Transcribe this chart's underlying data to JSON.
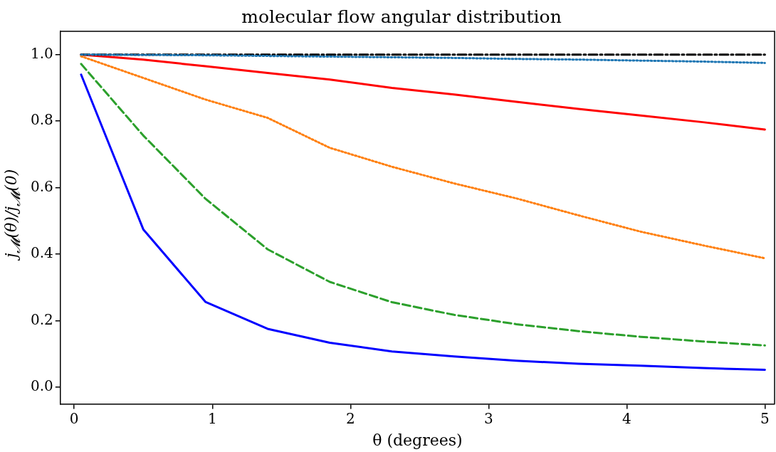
{
  "chart_data": {
    "type": "line",
    "title": "molecular flow angular distribution",
    "xlabel": "θ (degrees)",
    "ylabel": "j$_{𝓜}$(θ)/j$_{𝓜}$(0)",
    "x": [
      0.05,
      0.5,
      0.95,
      1.4,
      1.85,
      2.3,
      2.75,
      3.2,
      3.65,
      4.1,
      4.55,
      5.0
    ],
    "series": [
      {
        "color": "#000000",
        "line_style": "dashdot",
        "values": [
          1.0,
          1.0,
          1.0,
          1.0,
          1.0,
          1.0,
          1.0,
          1.0,
          1.0,
          1.0,
          1.0,
          1.0
        ]
      },
      {
        "color": "#1f77b4",
        "line_style": "dotted",
        "values": [
          1.0,
          0.999,
          0.998,
          0.996,
          0.994,
          0.992,
          0.99,
          0.987,
          0.985,
          0.982,
          0.979,
          0.975
        ]
      },
      {
        "color": "#ff0000",
        "line_style": "solid",
        "values": [
          1.0,
          0.985,
          0.965,
          0.945,
          0.925,
          0.9,
          0.88,
          0.858,
          0.837,
          0.817,
          0.797,
          0.775
        ]
      },
      {
        "color": "#ff7f0e",
        "line_style": "dotted",
        "values": [
          0.995,
          0.93,
          0.865,
          0.81,
          0.72,
          0.663,
          0.613,
          0.568,
          0.517,
          0.468,
          0.427,
          0.388
        ]
      },
      {
        "color": "#2ca02c",
        "line_style": "dashed",
        "values": [
          0.972,
          0.757,
          0.567,
          0.415,
          0.317,
          0.256,
          0.218,
          0.19,
          0.169,
          0.152,
          0.138,
          0.126
        ]
      },
      {
        "color": "#0000ff",
        "line_style": "solid",
        "values": [
          0.94,
          0.475,
          0.257,
          0.176,
          0.134,
          0.108,
          0.093,
          0.08,
          0.071,
          0.065,
          0.058,
          0.053
        ]
      }
    ],
    "xlim": [
      -0.1,
      5.07
    ],
    "xticks": [
      0,
      1,
      2,
      3,
      4,
      5
    ],
    "ylim": [
      -0.05,
      1.07
    ],
    "yticks": [
      {
        "value": 0,
        "label": "0.0"
      },
      {
        "value": 0.2,
        "label": "0.2"
      },
      {
        "value": 0.4,
        "label": "0.4"
      },
      {
        "value": 0.6,
        "label": "0.6"
      },
      {
        "value": 0.8,
        "label": "0.8"
      },
      {
        "value": 1,
        "label": "1.0"
      }
    ],
    "grid": false,
    "legend": false,
    "marker": "none"
  }
}
